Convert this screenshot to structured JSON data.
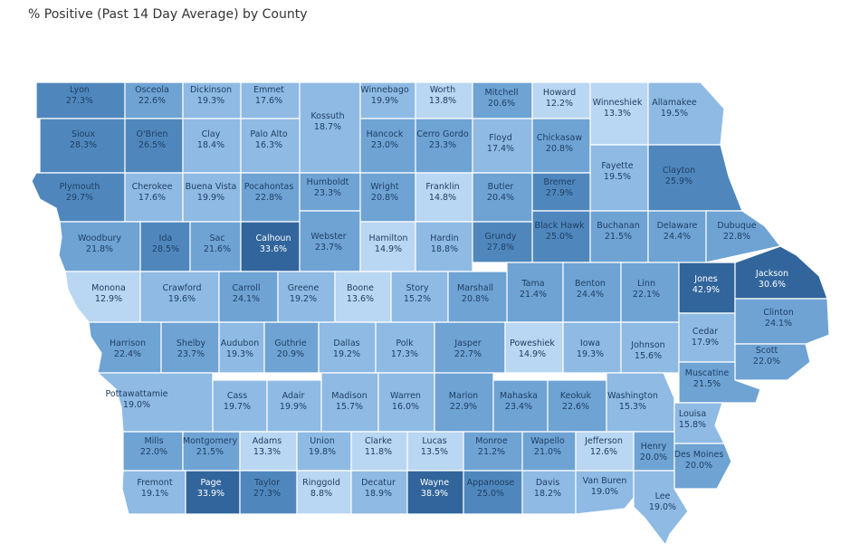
{
  "title": "% Positive (Past 14 Day Average) by County",
  "legend_colors": [
    "#b9d6f2",
    "#8ebae4",
    "#6ea3d4",
    "#4f87bd",
    "#31659c"
  ],
  "counties": [
    {
      "name": "Lyon",
      "value": "27.3%"
    },
    {
      "name": "Osceola",
      "value": "22.6%"
    },
    {
      "name": "Dickinson",
      "value": "19.3%"
    },
    {
      "name": "Emmet",
      "value": "17.6%"
    },
    {
      "name": "Kossuth",
      "value": "18.7%"
    },
    {
      "name": "Winnebago",
      "value": "19.9%"
    },
    {
      "name": "Worth",
      "value": "13.8%"
    },
    {
      "name": "Mitchell",
      "value": "20.6%"
    },
    {
      "name": "Howard",
      "value": "12.2%"
    },
    {
      "name": "Winneshiek",
      "value": "13.3%"
    },
    {
      "name": "Allamakee",
      "value": "19.5%"
    },
    {
      "name": "Sioux",
      "value": "28.3%"
    },
    {
      "name": "O'Brien",
      "value": "26.5%"
    },
    {
      "name": "Clay",
      "value": "18.4%"
    },
    {
      "name": "Palo Alto",
      "value": "16.3%"
    },
    {
      "name": "Hancock",
      "value": "23.0%"
    },
    {
      "name": "Cerro Gordo",
      "value": "23.3%"
    },
    {
      "name": "Floyd",
      "value": "17.4%"
    },
    {
      "name": "Chickasaw",
      "value": "20.8%"
    },
    {
      "name": "Fayette",
      "value": "19.5%"
    },
    {
      "name": "Clayton",
      "value": "25.9%"
    },
    {
      "name": "Plymouth",
      "value": "29.7%"
    },
    {
      "name": "Cherokee",
      "value": "17.6%"
    },
    {
      "name": "Buena Vista",
      "value": "19.9%"
    },
    {
      "name": "Pocahontas",
      "value": "22.8%"
    },
    {
      "name": "Humboldt",
      "value": "23.3%"
    },
    {
      "name": "Wright",
      "value": "20.8%"
    },
    {
      "name": "Franklin",
      "value": "14.8%"
    },
    {
      "name": "Butler",
      "value": "20.4%"
    },
    {
      "name": "Bremer",
      "value": "27.9%"
    },
    {
      "name": "Black Hawk",
      "value": "25.0%"
    },
    {
      "name": "Buchanan",
      "value": "21.5%"
    },
    {
      "name": "Delaware",
      "value": "24.4%"
    },
    {
      "name": "Dubuque",
      "value": "22.8%"
    },
    {
      "name": "Woodbury",
      "value": "21.8%"
    },
    {
      "name": "Ida",
      "value": "28.5%"
    },
    {
      "name": "Sac",
      "value": "21.6%"
    },
    {
      "name": "Calhoun",
      "value": "33.6%"
    },
    {
      "name": "Webster",
      "value": "23.7%"
    },
    {
      "name": "Hamilton",
      "value": "14.9%"
    },
    {
      "name": "Hardin",
      "value": "18.8%"
    },
    {
      "name": "Grundy",
      "value": "27.8%"
    },
    {
      "name": "Tama",
      "value": "21.4%"
    },
    {
      "name": "Benton",
      "value": "24.4%"
    },
    {
      "name": "Linn",
      "value": "22.1%"
    },
    {
      "name": "Jones",
      "value": "42.9%"
    },
    {
      "name": "Jackson",
      "value": "30.6%"
    },
    {
      "name": "Monona",
      "value": "12.9%"
    },
    {
      "name": "Crawford",
      "value": "19.6%"
    },
    {
      "name": "Carroll",
      "value": "24.1%"
    },
    {
      "name": "Greene",
      "value": "19.2%"
    },
    {
      "name": "Boone",
      "value": "13.6%"
    },
    {
      "name": "Story",
      "value": "15.2%"
    },
    {
      "name": "Marshall",
      "value": "20.8%"
    },
    {
      "name": "Cedar",
      "value": "17.9%"
    },
    {
      "name": "Clinton",
      "value": "24.1%"
    },
    {
      "name": "Harrison",
      "value": "22.4%"
    },
    {
      "name": "Shelby",
      "value": "23.7%"
    },
    {
      "name": "Audubon",
      "value": "19.3%"
    },
    {
      "name": "Guthrie",
      "value": "20.9%"
    },
    {
      "name": "Dallas",
      "value": "19.2%"
    },
    {
      "name": "Polk",
      "value": "17.3%"
    },
    {
      "name": "Jasper",
      "value": "22.7%"
    },
    {
      "name": "Poweshiek",
      "value": "14.9%"
    },
    {
      "name": "Iowa",
      "value": "19.3%"
    },
    {
      "name": "Johnson",
      "value": "15.6%"
    },
    {
      "name": "Scott",
      "value": "22.0%"
    },
    {
      "name": "Muscatine",
      "value": "21.5%"
    },
    {
      "name": "Pottawattamie",
      "value": "19.0%"
    },
    {
      "name": "Cass",
      "value": "19.7%"
    },
    {
      "name": "Adair",
      "value": "19.9%"
    },
    {
      "name": "Madison",
      "value": "15.7%"
    },
    {
      "name": "Warren",
      "value": "16.0%"
    },
    {
      "name": "Marion",
      "value": "22.9%"
    },
    {
      "name": "Mahaska",
      "value": "23.4%"
    },
    {
      "name": "Keokuk",
      "value": "22.6%"
    },
    {
      "name": "Washington",
      "value": "15.3%"
    },
    {
      "name": "Louisa",
      "value": "15.8%"
    },
    {
      "name": "Mills",
      "value": "22.0%"
    },
    {
      "name": "Montgomery",
      "value": "21.5%"
    },
    {
      "name": "Adams",
      "value": "13.3%"
    },
    {
      "name": "Union",
      "value": "19.8%"
    },
    {
      "name": "Clarke",
      "value": "11.8%"
    },
    {
      "name": "Lucas",
      "value": "13.5%"
    },
    {
      "name": "Monroe",
      "value": "21.2%"
    },
    {
      "name": "Wapello",
      "value": "21.0%"
    },
    {
      "name": "Jefferson",
      "value": "12.6%"
    },
    {
      "name": "Henry",
      "value": "20.0%"
    },
    {
      "name": "Des Moines",
      "value": "20.0%"
    },
    {
      "name": "Fremont",
      "value": "19.1%"
    },
    {
      "name": "Page",
      "value": "33.9%"
    },
    {
      "name": "Taylor",
      "value": "27.3%"
    },
    {
      "name": "Ringgold",
      "value": "8.8%"
    },
    {
      "name": "Decatur",
      "value": "18.9%"
    },
    {
      "name": "Wayne",
      "value": "38.9%"
    },
    {
      "name": "Appanoose",
      "value": "25.0%"
    },
    {
      "name": "Davis",
      "value": "18.2%"
    },
    {
      "name": "Van Buren",
      "value": "19.0%"
    },
    {
      "name": "Lee",
      "value": "19.0%"
    }
  ]
}
